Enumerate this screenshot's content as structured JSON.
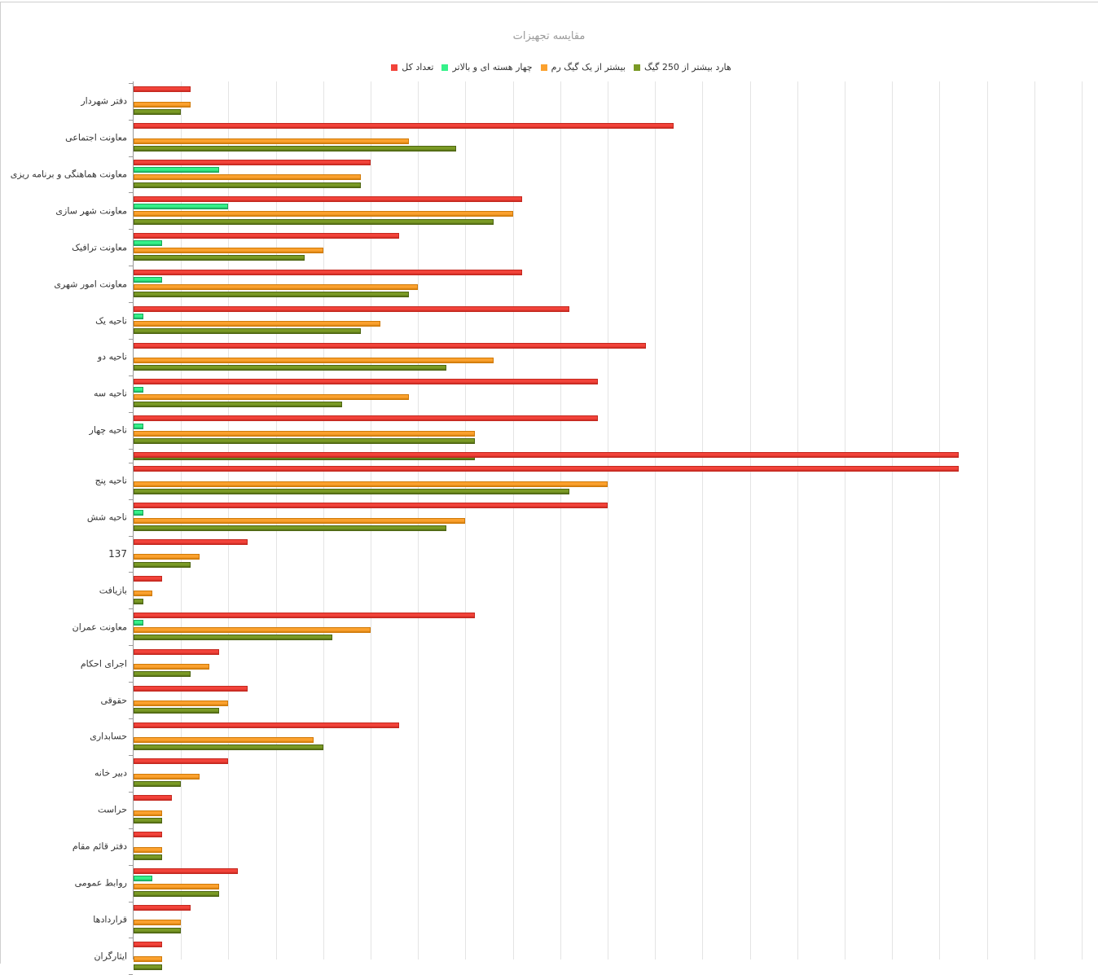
{
  "chart_data": {
    "type": "bar",
    "orientation": "horizontal",
    "title": "مقایسه تجهیزات",
    "xlabel": "",
    "ylabel": "",
    "xlim": [
      0,
      100
    ],
    "grid": true,
    "legend_position": "top-center",
    "categories": [
      "دفتر شهردار",
      "معاونت اجتماعی",
      "معاونت هماهنگی و برنامه ریزی",
      "معاونت شهر سازی",
      "معاونت ترافیک",
      "معاونت امور شهری",
      "ناحیه یک",
      "ناحیه دو",
      "ناحیه سه",
      "ناحیه چهار",
      "ناحیه پنج",
      "ناحیه شش",
      "137",
      "بازیافت",
      "معاونت عمران",
      "اجرای احکام",
      "حقوقی",
      "حسابداری",
      "دبیر خانه",
      "حراست",
      "دفتر قائم مقام",
      "روابط عمومی",
      "قراردادها",
      "ایثارگران"
    ],
    "series": [
      {
        "name": "تعداد کل",
        "color": "#f2433a",
        "border": "#c4281f",
        "values": [
          6,
          57,
          25,
          41,
          28,
          41,
          46,
          54,
          49,
          49,
          87,
          50,
          12,
          3,
          36,
          9,
          12,
          28,
          10,
          4,
          3,
          11,
          6,
          3
        ]
      },
      {
        "name": "چهار هسته ای و بالاتر",
        "color": "#35f28a",
        "border": "#1aa85a",
        "values": [
          0,
          0,
          9,
          10,
          3,
          3,
          1,
          0,
          1,
          1,
          0,
          1,
          0,
          0,
          1,
          0,
          0,
          0,
          0,
          0,
          0,
          2,
          0,
          0
        ]
      },
      {
        "name": "بیشتر از یک گیگ رم",
        "color": "#fba12e",
        "border": "#d07a08",
        "values": [
          6,
          29,
          24,
          40,
          20,
          30,
          26,
          38,
          29,
          36,
          50,
          35,
          7,
          2,
          25,
          8,
          10,
          19,
          7,
          3,
          3,
          9,
          5,
          3
        ]
      },
      {
        "name": "هارد بیشتر از 250 گیگ",
        "color": "#7a9a25",
        "border": "#4e6612",
        "values": [
          5,
          34,
          24,
          38,
          18,
          29,
          24,
          33,
          22,
          36,
          46,
          33,
          6,
          1,
          21,
          6,
          9,
          20,
          5,
          3,
          3,
          9,
          5,
          3
        ]
      }
    ]
  }
}
